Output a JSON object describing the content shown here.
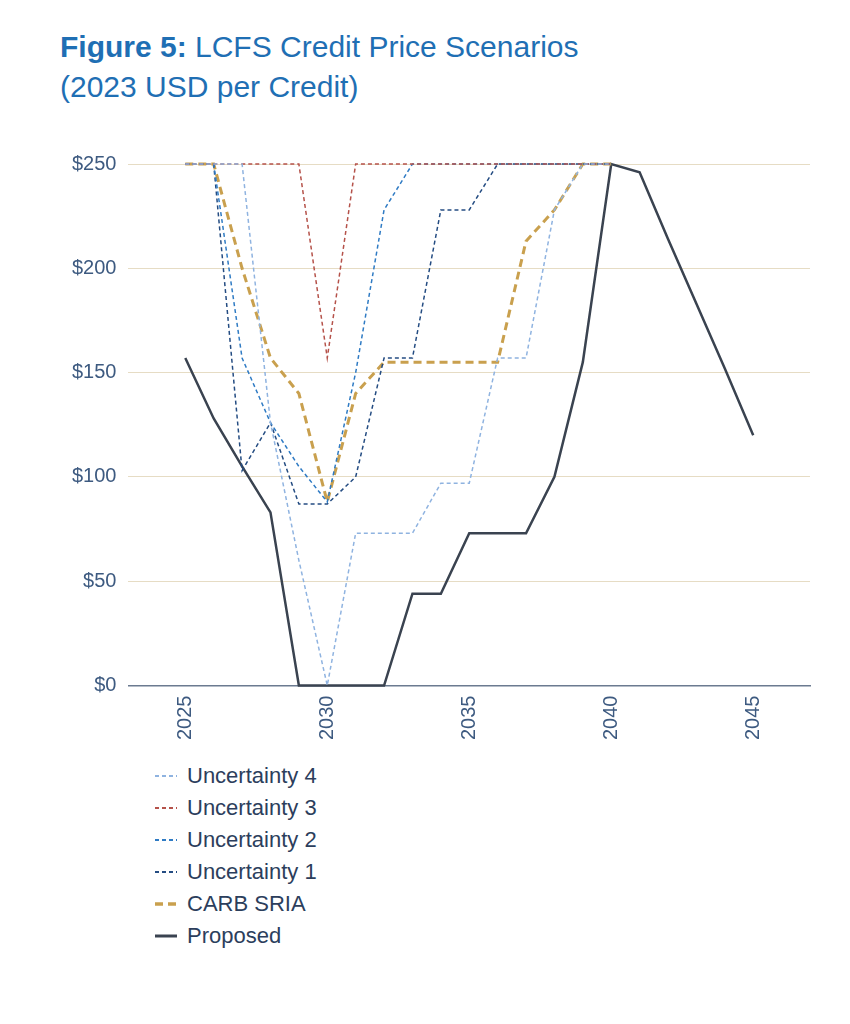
{
  "chart_data": {
    "type": "line",
    "title": "Figure 5: LCFS Credit Price Scenarios",
    "subtitle": "(2023 USD per Credit)",
    "x": [
      2025,
      2026,
      2027,
      2028,
      2029,
      2030,
      2031,
      2032,
      2033,
      2034,
      2035,
      2036,
      2037,
      2038,
      2039,
      2040,
      2041,
      2042,
      2043,
      2044,
      2045
    ],
    "xlim": [
      2023,
      2047
    ],
    "xticks": [
      2025,
      2030,
      2035,
      2040,
      2045
    ],
    "ylim": [
      0,
      250
    ],
    "yticks": [
      {
        "value": 0,
        "label": "$0"
      },
      {
        "value": 50,
        "label": "$50"
      },
      {
        "value": 100,
        "label": "$100"
      },
      {
        "value": 150,
        "label": "$150"
      },
      {
        "value": 200,
        "label": "$200"
      },
      {
        "value": 250,
        "label": "$250"
      }
    ],
    "grid": true,
    "legend": "bottom",
    "series": [
      {
        "name": "Uncertainty 4",
        "color": "#8fb3e0",
        "line_style": "dashed",
        "values": [
          250,
          250,
          250,
          126,
          60,
          0,
          73,
          73,
          73,
          97,
          97,
          157,
          157,
          228,
          250,
          250,
          null,
          null,
          null,
          null,
          null
        ]
      },
      {
        "name": "Uncertainty 3",
        "color": "#b5524a",
        "line_style": "dashed",
        "values": [
          250,
          250,
          250,
          250,
          250,
          157,
          250,
          250,
          250,
          250,
          250,
          250,
          250,
          250,
          250,
          250,
          null,
          null,
          null,
          null,
          null
        ]
      },
      {
        "name": "Uncertainty 2",
        "color": "#2f7bc4",
        "line_style": "dashed",
        "values": [
          250,
          250,
          157,
          126,
          105,
          88,
          150,
          228,
          250,
          250,
          250,
          250,
          250,
          250,
          250,
          250,
          null,
          null,
          null,
          null,
          null
        ]
      },
      {
        "name": "Uncertainty 1",
        "color": "#244c82",
        "line_style": "dashed",
        "values": [
          250,
          250,
          103,
          126,
          87,
          87,
          100,
          157,
          157,
          228,
          228,
          250,
          250,
          250,
          250,
          250,
          null,
          null,
          null,
          null,
          null
        ]
      },
      {
        "name": "CARB SRIA",
        "color": "#c9a04e",
        "line_style": "thick-dashed",
        "values": [
          250,
          250,
          200,
          157,
          140,
          88,
          140,
          155,
          155,
          155,
          155,
          155,
          213,
          228,
          250,
          250,
          null,
          null,
          null,
          null,
          null
        ]
      },
      {
        "name": "Proposed",
        "color": "#3a4350",
        "line_style": "solid",
        "values": [
          157,
          128,
          105,
          83,
          0,
          0,
          0,
          0,
          44,
          44,
          73,
          73,
          73,
          100,
          155,
          250,
          246,
          214,
          183,
          152,
          120
        ]
      }
    ]
  }
}
